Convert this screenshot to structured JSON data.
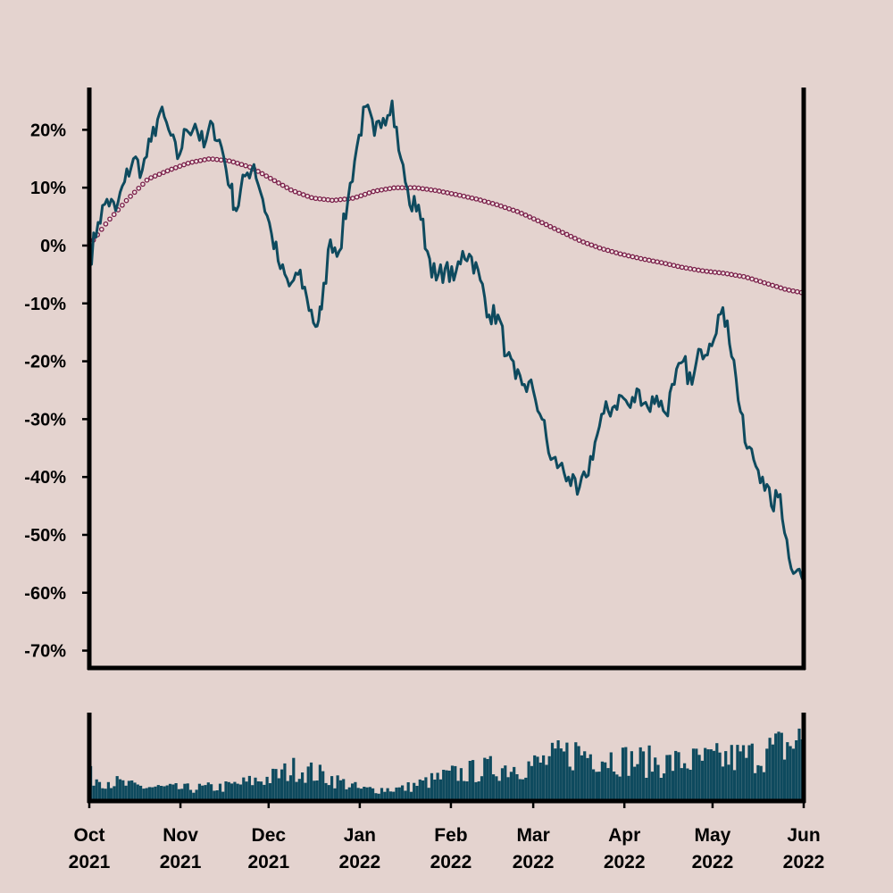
{
  "colors": {
    "background": "#e4d3cf",
    "price_line": "#0e4a5e",
    "ma_dots": "#7a1f4a",
    "volume": "#0e4a5e",
    "axis": "#000000"
  },
  "chart_data": [
    {
      "type": "line",
      "title": "",
      "xlabel": "",
      "ylabel": "",
      "y_unit": "%",
      "ylim": [
        -73,
        27
      ],
      "yticks": [
        20,
        10,
        0,
        -10,
        -20,
        -30,
        -40,
        -50,
        -60,
        -70
      ],
      "ytick_labels": [
        "20%",
        "10%",
        "0%",
        "-10%",
        "-20%",
        "-30%",
        "-40%",
        "-50%",
        "-60%",
        "-70%"
      ],
      "xlim": [
        "2021-10-01",
        "2022-06-01"
      ],
      "grid": false,
      "series": [
        {
          "style": "solid-line",
          "points": [
            [
              "2021-10-01",
              -3
            ],
            [
              "2021-10-04",
              4
            ],
            [
              "2021-10-07",
              8
            ],
            [
              "2021-10-10",
              6
            ],
            [
              "2021-10-13",
              11
            ],
            [
              "2021-10-16",
              15
            ],
            [
              "2021-10-19",
              13
            ],
            [
              "2021-10-22",
              18
            ],
            [
              "2021-10-25",
              23
            ],
            [
              "2021-10-28",
              20
            ],
            [
              "2021-10-31",
              15
            ],
            [
              "2021-11-03",
              20
            ],
            [
              "2021-11-06",
              21
            ],
            [
              "2021-11-09",
              17
            ],
            [
              "2021-11-12",
              21
            ],
            [
              "2021-11-15",
              17
            ],
            [
              "2021-11-18",
              10
            ],
            [
              "2021-11-20",
              6
            ],
            [
              "2021-11-23",
              12
            ],
            [
              "2021-11-26",
              14
            ],
            [
              "2021-11-29",
              8
            ],
            [
              "2021-12-02",
              2
            ],
            [
              "2021-12-05",
              -4
            ],
            [
              "2021-12-08",
              -7
            ],
            [
              "2021-12-11",
              -5
            ],
            [
              "2021-12-14",
              -9
            ],
            [
              "2021-12-17",
              -14
            ],
            [
              "2021-12-19",
              -11
            ],
            [
              "2021-12-22",
              1
            ],
            [
              "2021-12-25",
              -1
            ],
            [
              "2021-12-28",
              8
            ],
            [
              "2021-12-31",
              17
            ],
            [
              "2022-01-03",
              24
            ],
            [
              "2022-01-06",
              19
            ],
            [
              "2022-01-09",
              22
            ],
            [
              "2022-01-12",
              25
            ],
            [
              "2022-01-15",
              15
            ],
            [
              "2022-01-18",
              7
            ],
            [
              "2022-01-21",
              7
            ],
            [
              "2022-01-24",
              -1
            ],
            [
              "2022-01-27",
              -6
            ],
            [
              "2022-01-30",
              -4
            ],
            [
              "2022-02-02",
              -6
            ],
            [
              "2022-02-05",
              -1
            ],
            [
              "2022-02-08",
              -2
            ],
            [
              "2022-02-11",
              -6
            ],
            [
              "2022-02-14",
              -12
            ],
            [
              "2022-02-17",
              -12
            ],
            [
              "2022-02-20",
              -19
            ],
            [
              "2022-02-23",
              -23
            ],
            [
              "2022-02-26",
              -24
            ],
            [
              "2022-03-01",
              -25
            ],
            [
              "2022-03-04",
              -30
            ],
            [
              "2022-03-07",
              -37
            ],
            [
              "2022-03-10",
              -38
            ],
            [
              "2022-03-13",
              -40
            ],
            [
              "2022-03-16",
              -43
            ],
            [
              "2022-03-19",
              -40
            ],
            [
              "2022-03-22",
              -34
            ],
            [
              "2022-03-25",
              -29
            ],
            [
              "2022-03-28",
              -28
            ],
            [
              "2022-03-31",
              -26
            ],
            [
              "2022-04-03",
              -28
            ],
            [
              "2022-04-06",
              -25
            ],
            [
              "2022-04-09",
              -28
            ],
            [
              "2022-04-12",
              -26
            ],
            [
              "2022-04-15",
              -29
            ],
            [
              "2022-04-18",
              -24
            ],
            [
              "2022-04-21",
              -20
            ],
            [
              "2022-04-24",
              -24
            ],
            [
              "2022-04-27",
              -18
            ],
            [
              "2022-04-30",
              -17
            ],
            [
              "2022-05-03",
              -12
            ],
            [
              "2022-05-06",
              -13
            ],
            [
              "2022-05-09",
              -23
            ],
            [
              "2022-05-12",
              -34
            ],
            [
              "2022-05-15",
              -37
            ],
            [
              "2022-05-18",
              -40
            ],
            [
              "2022-05-21",
              -45
            ],
            [
              "2022-05-24",
              -43
            ],
            [
              "2022-05-27",
              -54
            ],
            [
              "2022-05-30",
              -56
            ],
            [
              "2022-06-01",
              -58
            ]
          ]
        },
        {
          "style": "dotted-line",
          "points": [
            [
              "2021-10-01",
              0
            ],
            [
              "2021-10-07",
              4
            ],
            [
              "2021-10-14",
              8
            ],
            [
              "2021-10-21",
              11.5
            ],
            [
              "2021-10-28",
              13
            ],
            [
              "2021-11-04",
              14.3
            ],
            [
              "2021-11-11",
              15
            ],
            [
              "2021-11-18",
              14.6
            ],
            [
              "2021-11-25",
              13.5
            ],
            [
              "2021-12-02",
              11.5
            ],
            [
              "2021-12-09",
              9.5
            ],
            [
              "2021-12-16",
              8.2
            ],
            [
              "2021-12-23",
              7.8
            ],
            [
              "2021-12-30",
              8.2
            ],
            [
              "2022-01-06",
              9.4
            ],
            [
              "2022-01-13",
              10
            ],
            [
              "2022-01-20",
              10
            ],
            [
              "2022-01-27",
              9.5
            ],
            [
              "2022-02-03",
              8.8
            ],
            [
              "2022-02-10",
              8
            ],
            [
              "2022-02-17",
              7
            ],
            [
              "2022-02-24",
              5.8
            ],
            [
              "2022-03-03",
              4.2
            ],
            [
              "2022-03-10",
              2.5
            ],
            [
              "2022-03-17",
              0.8
            ],
            [
              "2022-03-24",
              -0.5
            ],
            [
              "2022-03-31",
              -1.5
            ],
            [
              "2022-04-07",
              -2.3
            ],
            [
              "2022-04-14",
              -3
            ],
            [
              "2022-04-21",
              -3.8
            ],
            [
              "2022-04-28",
              -4.4
            ],
            [
              "2022-05-05",
              -4.8
            ],
            [
              "2022-05-12",
              -5.4
            ],
            [
              "2022-05-19",
              -6.5
            ],
            [
              "2022-05-26",
              -7.6
            ],
            [
              "2022-06-01",
              -8.2
            ]
          ]
        }
      ]
    },
    {
      "type": "bar",
      "title": "",
      "ylabel": "",
      "ylim": [
        0,
        100
      ],
      "xlim": [
        "2021-10-01",
        "2022-06-01"
      ],
      "x_tick_dates": [
        "2021-10-01",
        "2021-11-01",
        "2021-12-01",
        "2022-01-01",
        "2022-02-01",
        "2022-03-01",
        "2022-04-01",
        "2022-05-01",
        "2022-06-01"
      ],
      "x_tick_labels": [
        [
          "Oct",
          "2021"
        ],
        [
          "Nov",
          "2021"
        ],
        [
          "Dec",
          "2021"
        ],
        [
          "Jan",
          "2022"
        ],
        [
          "Feb",
          "2022"
        ],
        [
          "Mar",
          "2022"
        ],
        [
          "Apr",
          "2022"
        ],
        [
          "May",
          "2022"
        ],
        [
          "Jun",
          "2022"
        ]
      ],
      "volume_profile": [
        [
          "2021-10-01",
          30
        ],
        [
          "2021-10-15",
          18
        ],
        [
          "2021-11-01",
          15
        ],
        [
          "2021-11-15",
          17
        ],
        [
          "2021-12-01",
          28
        ],
        [
          "2021-12-10",
          40
        ],
        [
          "2021-12-20",
          30
        ],
        [
          "2022-01-01",
          14
        ],
        [
          "2022-01-15",
          15
        ],
        [
          "2022-02-01",
          32
        ],
        [
          "2022-02-15",
          40
        ],
        [
          "2022-03-01",
          44
        ],
        [
          "2022-03-15",
          60
        ],
        [
          "2022-04-01",
          50
        ],
        [
          "2022-04-15",
          46
        ],
        [
          "2022-05-01",
          50
        ],
        [
          "2022-05-15",
          55
        ],
        [
          "2022-06-01",
          75
        ]
      ]
    }
  ]
}
